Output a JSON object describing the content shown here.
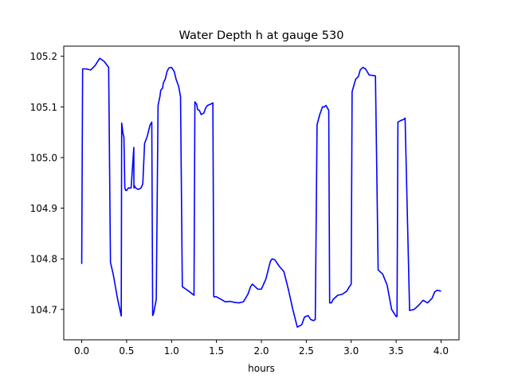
{
  "chart_data": {
    "type": "line",
    "title": "Water Depth h at gauge 530",
    "xlabel": "hours",
    "ylabel": "",
    "xlim": [
      -0.2,
      4.2
    ],
    "ylim": [
      104.64,
      105.22
    ],
    "xticks": [
      0.0,
      0.5,
      1.0,
      1.5,
      2.0,
      2.5,
      3.0,
      3.5,
      4.0
    ],
    "xtick_labels": [
      "0.0",
      "0.5",
      "1.0",
      "1.5",
      "2.0",
      "2.5",
      "3.0",
      "3.5",
      "4.0"
    ],
    "yticks": [
      104.7,
      104.8,
      104.9,
      105.0,
      105.1,
      105.2
    ],
    "ytick_labels": [
      "104.7",
      "104.8",
      "104.9",
      "105.0",
      "105.1",
      "105.2"
    ],
    "grid": false,
    "series": [
      {
        "color": "#0000ff",
        "x": [
          0.0,
          0.01,
          0.05,
          0.1,
          0.15,
          0.2,
          0.25,
          0.3,
          0.32,
          0.35,
          0.4,
          0.44,
          0.445,
          0.46,
          0.47,
          0.48,
          0.49,
          0.5,
          0.52,
          0.55,
          0.58,
          0.581,
          0.585,
          0.6,
          0.63,
          0.66,
          0.68,
          0.7,
          0.73,
          0.76,
          0.78,
          0.79,
          0.8,
          0.83,
          0.85,
          0.87,
          0.88,
          0.9,
          0.91,
          0.93,
          0.95,
          0.97,
          1.0,
          1.03,
          1.05,
          1.08,
          1.1,
          1.12,
          1.16,
          1.2,
          1.25,
          1.26,
          1.28,
          1.29,
          1.31,
          1.33,
          1.36,
          1.38,
          1.4,
          1.43,
          1.46,
          1.47,
          1.48,
          1.5,
          1.55,
          1.6,
          1.65,
          1.7,
          1.75,
          1.8,
          1.85,
          1.88,
          1.9,
          1.93,
          1.96,
          2.0,
          2.05,
          2.1,
          2.12,
          2.15,
          2.2,
          2.25,
          2.3,
          2.35,
          2.4,
          2.45,
          2.48,
          2.52,
          2.55,
          2.58,
          2.6,
          2.62,
          2.65,
          2.68,
          2.7,
          2.72,
          2.75,
          2.76,
          2.78,
          2.8,
          2.85,
          2.9,
          2.95,
          2.98,
          3.0,
          3.01,
          3.05,
          3.08,
          3.1,
          3.13,
          3.16,
          3.2,
          3.25,
          3.26,
          3.27,
          3.3,
          3.35,
          3.4,
          3.45,
          3.5,
          3.51,
          3.52,
          3.55,
          3.58,
          3.59,
          3.6,
          3.65,
          3.7,
          3.75,
          3.8,
          3.85,
          3.9,
          3.93,
          3.96,
          4.0
        ],
        "y": [
          104.79,
          105.175,
          105.175,
          105.173,
          105.182,
          105.196,
          105.19,
          105.178,
          104.793,
          104.77,
          104.72,
          104.687,
          105.068,
          105.047,
          105.04,
          104.94,
          104.935,
          104.935,
          104.94,
          104.94,
          105.02,
          104.94,
          104.945,
          104.94,
          104.937,
          104.94,
          104.948,
          105.028,
          105.042,
          105.064,
          105.07,
          104.688,
          104.692,
          104.72,
          105.103,
          105.12,
          105.133,
          105.137,
          105.148,
          105.155,
          105.17,
          105.177,
          105.178,
          105.17,
          105.155,
          105.14,
          105.12,
          104.745,
          104.74,
          104.735,
          104.728,
          105.11,
          105.105,
          105.095,
          105.093,
          105.085,
          105.088,
          105.098,
          105.103,
          105.105,
          105.108,
          104.725,
          104.725,
          104.725,
          104.72,
          104.715,
          104.716,
          104.714,
          104.713,
          104.715,
          104.73,
          104.745,
          104.75,
          104.745,
          104.74,
          104.74,
          104.76,
          104.795,
          104.8,
          104.798,
          104.785,
          104.775,
          104.74,
          104.7,
          104.665,
          104.67,
          104.685,
          104.688,
          104.68,
          104.678,
          104.68,
          105.065,
          105.085,
          105.1,
          105.1,
          105.103,
          105.093,
          104.713,
          104.713,
          104.72,
          104.728,
          104.73,
          104.736,
          104.745,
          104.75,
          105.13,
          105.155,
          105.16,
          105.173,
          105.178,
          105.175,
          105.163,
          105.162,
          105.162,
          105.161,
          104.778,
          104.77,
          104.748,
          104.7,
          104.686,
          104.686,
          105.07,
          105.073,
          105.075,
          105.076,
          105.078,
          104.698,
          104.7,
          104.708,
          104.718,
          104.713,
          104.722,
          104.735,
          104.738,
          104.736
        ]
      }
    ]
  }
}
